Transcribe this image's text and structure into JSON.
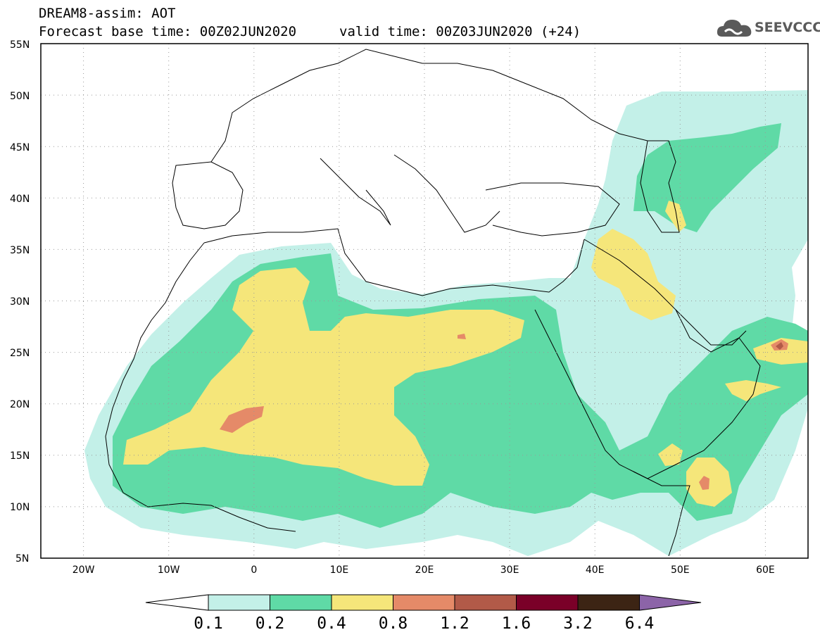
{
  "header": {
    "title": "DREAM8-assim: AOT",
    "base_time": "Forecast base time: 00Z02JUN2020",
    "valid_time": "valid time: 00Z03JUN2020 (+24)"
  },
  "logo": {
    "text": "SEEVCCC",
    "icon": "cloud-icon",
    "color": "#5a5a5a"
  },
  "map": {
    "lat_labels": [
      "55N",
      "50N",
      "45N",
      "40N",
      "35N",
      "30N",
      "25N",
      "20N",
      "15N",
      "10N",
      "5N"
    ],
    "lon_labels": [
      "20W",
      "10W",
      "0",
      "10E",
      "20E",
      "30E",
      "40E",
      "50E",
      "60E"
    ],
    "lat_range": [
      5,
      55
    ],
    "lon_range": [
      -25,
      65
    ],
    "gridlines": "dotted"
  },
  "colorbar": {
    "labels": [
      "0.1",
      "0.2",
      "0.4",
      "0.8",
      "1.2",
      "1.6",
      "3.2",
      "6.4"
    ],
    "colors": [
      "#ffffff",
      "#c3f0e8",
      "#5fdaa6",
      "#f5e67a",
      "#e58a68",
      "#b25a48",
      "#7a0028",
      "#3c2414",
      "#8c64a8"
    ]
  }
}
